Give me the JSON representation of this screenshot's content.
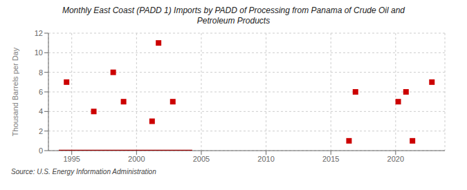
{
  "chart_data": {
    "type": "scatter",
    "title": "Monthly East Coast (PADD 1) Imports by PADD of Processing from Panama of Crude Oil and\nPetroleum Products",
    "ylabel": "Thousand Barrels per Day",
    "annotations": [
      "Source: U.S. Energy Information Administration"
    ],
    "xlim": [
      1993.2,
      2023.8
    ],
    "ylim": [
      0,
      12
    ],
    "xticks": [
      1995,
      2000,
      2005,
      2010,
      2015,
      2020
    ],
    "yticks": [
      0,
      2,
      4,
      6,
      8,
      10,
      12
    ],
    "grid": true,
    "series": [
      {
        "type": "line",
        "color": "#9b0000",
        "x": [
          1994.0,
          2004.3
        ],
        "values": [
          0.0,
          0.0
        ]
      },
      {
        "type": "scatter",
        "color": "#cc0000",
        "marker": "square",
        "x": [
          1994.6,
          1996.7,
          1998.2,
          1999.0,
          2001.2,
          2001.7,
          2002.8,
          2016.4,
          2016.9,
          2020.2,
          2020.8,
          2021.3,
          2022.8
        ],
        "values": [
          7,
          4,
          8,
          5,
          3,
          11,
          5,
          1,
          6,
          5,
          6,
          1,
          7
        ]
      }
    ]
  }
}
